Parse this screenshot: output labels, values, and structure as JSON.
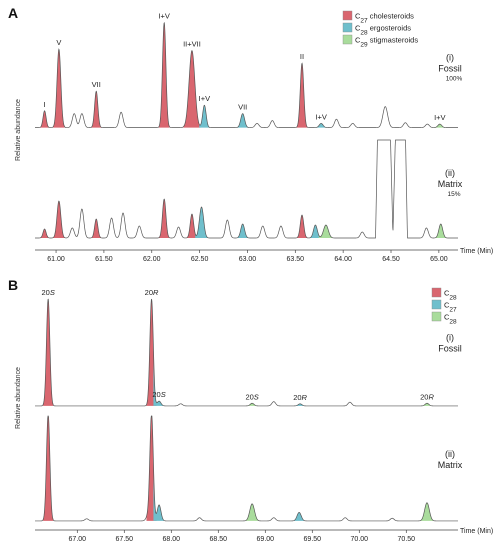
{
  "chart_data": [
    {
      "type": "line",
      "panel_label": "A",
      "ylabel": "Relative abundance",
      "xlabel": "Time (Min)",
      "xlim": [
        60.78,
        65.2
      ],
      "x_ticks": [
        "61.00",
        "61.50",
        "62.00",
        "62.50",
        "63.00",
        "63.50",
        "64.00",
        "64.50",
        "65.00"
      ],
      "x_tick_values": [
        61.0,
        61.5,
        62.0,
        62.5,
        63.0,
        63.5,
        64.0,
        64.5,
        65.0
      ],
      "legend": {
        "placement": "top-right",
        "entries": [
          {
            "html": "C<tspan baseline-shift='sub' font-size='6.5'>27</tspan> cholesteroids",
            "color": "#d9666f"
          },
          {
            "html": "C<tspan baseline-shift='sub' font-size='6.5'>28</tspan> ergosteroids",
            "color": "#6fbfcc"
          },
          {
            "html": "C<tspan baseline-shift='sub' font-size='6.5'>29</tspan> stigmasteroids",
            "color": "#a9dc9c"
          }
        ]
      },
      "traces": [
        {
          "name": "Fossil",
          "trace_label": "(i)",
          "trace_name": "Fossil",
          "trace_note": "100%",
          "baseline": 0.1,
          "peaks": [
            {
              "x": 60.88,
              "h": 1.2,
              "w": 0.016,
              "fill": "#d9666f",
              "label": "I"
            },
            {
              "x": 61.03,
              "h": 5.6,
              "w": 0.02,
              "fill": "#d9666f",
              "label": "V"
            },
            {
              "x": 61.19,
              "h": 1.0,
              "w": 0.02,
              "fill": null
            },
            {
              "x": 61.27,
              "h": 1.0,
              "w": 0.02,
              "fill": null
            },
            {
              "x": 61.42,
              "h": 2.6,
              "w": 0.017,
              "fill": "#d9666f",
              "label": "VII"
            },
            {
              "x": 61.68,
              "h": 1.1,
              "w": 0.02,
              "fill": null
            },
            {
              "x": 62.13,
              "h": 7.5,
              "w": 0.018,
              "fill": "#d9666f",
              "label": "I+V"
            },
            {
              "x": 62.42,
              "h": 5.5,
              "w": 0.03,
              "fill": "#d9666f",
              "label": "II+VII"
            },
            {
              "x": 62.55,
              "h": 1.6,
              "w": 0.018,
              "fill": "#6fbfcc",
              "label": "I+V"
            },
            {
              "x": 62.95,
              "h": 1.0,
              "w": 0.02,
              "fill": "#6fbfcc",
              "label": "VII"
            },
            {
              "x": 63.1,
              "h": 0.3,
              "w": 0.02,
              "fill": null
            },
            {
              "x": 63.26,
              "h": 0.5,
              "w": 0.02,
              "fill": null
            },
            {
              "x": 63.57,
              "h": 4.6,
              "w": 0.018,
              "fill": "#d9666f",
              "label": "II"
            },
            {
              "x": 63.77,
              "h": 0.3,
              "w": 0.02,
              "fill": "#6fbfcc",
              "label": "I+V"
            },
            {
              "x": 63.93,
              "h": 0.6,
              "w": 0.02,
              "fill": null
            },
            {
              "x": 64.1,
              "h": 0.3,
              "w": 0.02,
              "fill": null
            },
            {
              "x": 64.44,
              "h": 1.5,
              "w": 0.025,
              "fill": null
            },
            {
              "x": 64.65,
              "h": 0.35,
              "w": 0.02,
              "fill": null
            },
            {
              "x": 64.88,
              "h": 0.25,
              "w": 0.02,
              "fill": null
            },
            {
              "x": 65.01,
              "h": 0.25,
              "w": 0.02,
              "fill": "#a9dc9c",
              "label": "I+V"
            }
          ]
        },
        {
          "name": "Matrix",
          "trace_label": "(ii)",
          "trace_name": "Matrix",
          "trace_note": "15%",
          "baseline": 0.2,
          "peaks": [
            {
              "x": 60.88,
              "h": 0.9,
              "w": 0.016,
              "fill": "#d9666f"
            },
            {
              "x": 61.03,
              "h": 3.7,
              "w": 0.02,
              "fill": "#d9666f"
            },
            {
              "x": 61.17,
              "h": 1.0,
              "w": 0.02,
              "fill": null
            },
            {
              "x": 61.27,
              "h": 2.9,
              "w": 0.02,
              "fill": null
            },
            {
              "x": 61.42,
              "h": 1.9,
              "w": 0.017,
              "fill": "#d9666f"
            },
            {
              "x": 61.58,
              "h": 2.0,
              "w": 0.02,
              "fill": null
            },
            {
              "x": 61.7,
              "h": 2.5,
              "w": 0.02,
              "fill": null
            },
            {
              "x": 61.87,
              "h": 1.2,
              "w": 0.02,
              "fill": null
            },
            {
              "x": 62.13,
              "h": 3.9,
              "w": 0.018,
              "fill": "#d9666f"
            },
            {
              "x": 62.28,
              "h": 1.1,
              "w": 0.02,
              "fill": null
            },
            {
              "x": 62.42,
              "h": 2.4,
              "w": 0.018,
              "fill": "#d9666f"
            },
            {
              "x": 62.52,
              "h": 3.1,
              "w": 0.022,
              "fill": "#6fbfcc"
            },
            {
              "x": 62.79,
              "h": 1.8,
              "w": 0.02,
              "fill": null
            },
            {
              "x": 62.95,
              "h": 1.4,
              "w": 0.02,
              "fill": "#6fbfcc"
            },
            {
              "x": 63.16,
              "h": 1.2,
              "w": 0.02,
              "fill": null
            },
            {
              "x": 63.35,
              "h": 1.2,
              "w": 0.02,
              "fill": null
            },
            {
              "x": 63.57,
              "h": 2.3,
              "w": 0.018,
              "fill": "#d9666f"
            },
            {
              "x": 63.71,
              "h": 1.3,
              "w": 0.02,
              "fill": "#6fbfcc"
            },
            {
              "x": 63.82,
              "h": 1.3,
              "w": 0.025,
              "fill": "#a9dc9c"
            },
            {
              "x": 64.2,
              "h": 0.6,
              "w": 0.02,
              "fill": null
            },
            {
              "x": 64.87,
              "h": 1.0,
              "w": 0.02,
              "fill": null
            },
            {
              "x": 65.02,
              "h": 1.4,
              "w": 0.02,
              "fill": "#a9dc9c"
            }
          ],
          "plateau": {
            "x_start": 64.34,
            "x_end": 64.67,
            "dip_x": 64.52
          }
        }
      ]
    },
    {
      "type": "line",
      "panel_label": "B",
      "ylabel": "Relative abundance",
      "xlabel": "Time (Min)",
      "xlim": [
        66.55,
        71.05
      ],
      "x_ticks": [
        "67.00",
        "67.50",
        "68.00",
        "68.50",
        "69.00",
        "69.50",
        "70.00",
        "70.50"
      ],
      "x_tick_values": [
        67.0,
        67.5,
        68.0,
        68.5,
        69.0,
        69.5,
        70.0,
        70.5
      ],
      "legend": {
        "placement": "top-right",
        "entries": [
          {
            "html": "C<tspan baseline-shift='sub' font-size='6.5'>28</tspan>",
            "color": "#d9666f"
          },
          {
            "html": "C<tspan baseline-shift='sub' font-size='6.5'>27</tspan>",
            "color": "#6fbfcc"
          },
          {
            "html": "C<tspan baseline-shift='sub' font-size='6.5'>28</tspan>",
            "color": "#a9dc9c"
          }
        ]
      },
      "traces": [
        {
          "name": "Fossil",
          "trace_label": "(i)",
          "trace_name": "Fossil",
          "trace_note": "",
          "baseline": 0.1,
          "peaks": [
            {
              "x": 66.69,
              "h": 10.0,
              "w": 0.018,
              "fill": "#d9666f",
              "label": "20S"
            },
            {
              "x": 67.79,
              "h": 10.0,
              "w": 0.018,
              "fill": "#d9666f",
              "label": "20R"
            },
            {
              "x": 67.87,
              "h": 0.45,
              "w": 0.02,
              "fill": "#6fbfcc",
              "label": "20S"
            },
            {
              "x": 68.1,
              "h": 0.2,
              "w": 0.02,
              "fill": null
            },
            {
              "x": 68.86,
              "h": 0.25,
              "w": 0.02,
              "fill": "#a9dc9c",
              "label": "20S"
            },
            {
              "x": 69.09,
              "h": 0.4,
              "w": 0.02,
              "fill": null
            },
            {
              "x": 69.37,
              "h": 0.2,
              "w": 0.02,
              "fill": "#6fbfcc",
              "label": "20R"
            },
            {
              "x": 69.9,
              "h": 0.35,
              "w": 0.02,
              "fill": null
            },
            {
              "x": 70.72,
              "h": 0.25,
              "w": 0.02,
              "fill": "#a9dc9c",
              "label": "20R"
            }
          ]
        },
        {
          "name": "Matrix",
          "trace_label": "(ii)",
          "trace_name": "Matrix",
          "trace_note": "",
          "baseline": 0.1,
          "peaks": [
            {
              "x": 66.69,
              "h": 10.0,
              "w": 0.018,
              "fill": "#d9666f"
            },
            {
              "x": 67.1,
              "h": 0.2,
              "w": 0.02,
              "fill": null
            },
            {
              "x": 67.75,
              "h": 0.4,
              "w": 0.02,
              "fill": null
            },
            {
              "x": 67.79,
              "h": 10.0,
              "w": 0.018,
              "fill": "#d9666f"
            },
            {
              "x": 67.87,
              "h": 1.5,
              "w": 0.02,
              "fill": "#6fbfcc"
            },
            {
              "x": 68.3,
              "h": 0.3,
              "w": 0.02,
              "fill": null
            },
            {
              "x": 68.86,
              "h": 1.6,
              "w": 0.025,
              "fill": "#a9dc9c"
            },
            {
              "x": 69.09,
              "h": 0.3,
              "w": 0.02,
              "fill": null
            },
            {
              "x": 69.36,
              "h": 0.8,
              "w": 0.022,
              "fill": "#6fbfcc"
            },
            {
              "x": 69.85,
              "h": 0.3,
              "w": 0.02,
              "fill": null
            },
            {
              "x": 70.35,
              "h": 0.25,
              "w": 0.02,
              "fill": null
            },
            {
              "x": 70.72,
              "h": 1.7,
              "w": 0.025,
              "fill": "#a9dc9c"
            }
          ]
        }
      ]
    }
  ]
}
